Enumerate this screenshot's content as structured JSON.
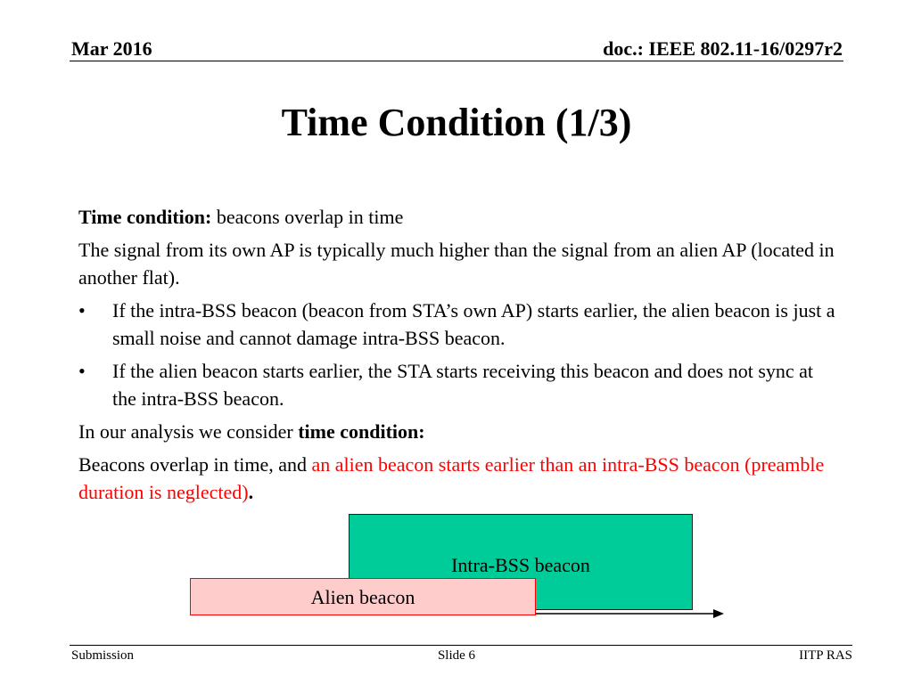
{
  "header": {
    "date": "Mar 2016",
    "doc": "doc.: IEEE 802.11-16/0297r2"
  },
  "slide": {
    "title": "Time Condition (1/3)"
  },
  "content": {
    "p1_bold": "Time condition:",
    "p1_text": " beacons overlap in time",
    "p2": "The signal from its own AP is typically much higher than the signal from an alien AP (located in another flat).",
    "bullet_symbol": "•",
    "bullets": [
      "If the intra-BSS beacon (beacon from STA’s own AP) starts earlier, the alien beacon is just a small noise and cannot damage intra-BSS beacon.",
      "If the alien beacon starts earlier, the STA starts receiving this beacon and does not sync at the intra-BSS beacon."
    ],
    "p3_text": "In our analysis we consider ",
    "p3_bold": "time condition:",
    "p4_text": "Beacons overlap in time, and ",
    "p4_red": "an alien beacon starts earlier than an intra-BSS beacon (preamble duration is neglected)",
    "p4_end": "."
  },
  "diagram": {
    "intra_label": "Intra-BSS beacon",
    "alien_label": "Alien beacon",
    "intra_color": "#00cc99",
    "alien_fill": "#ffcccc",
    "alien_border": "#ff0000"
  },
  "footer": {
    "left": "Submission",
    "center": "Slide 6",
    "right": "IITP RAS"
  }
}
